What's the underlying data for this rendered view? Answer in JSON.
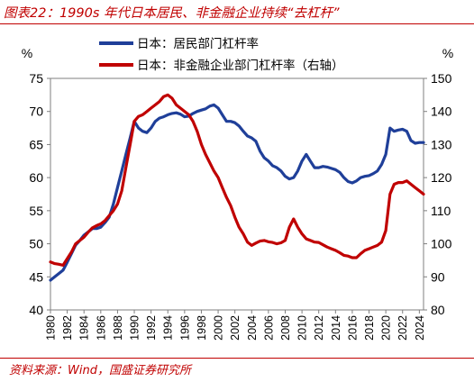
{
  "header": {
    "title": "图表22：1990s 年代日本居民、非金融企业持续“去杠杆”"
  },
  "footer": {
    "source": "资料来源：Wind，国盛证券研究所"
  },
  "colors": {
    "accent": "#c00000",
    "series_blue": "#1f3f99",
    "series_red": "#c00000"
  },
  "chart_data": {
    "type": "line",
    "left_unit": "%",
    "right_unit": "%",
    "ylim_left": [
      40,
      75
    ],
    "ylim_right": [
      80,
      150
    ],
    "yticks_left": [
      40,
      45,
      50,
      55,
      60,
      65,
      70,
      75
    ],
    "yticks_right": [
      80,
      90,
      100,
      110,
      120,
      130,
      140,
      150
    ],
    "xlim": [
      1980,
      2024.5
    ],
    "xticks": [
      "1980",
      "1982",
      "1984",
      "1986",
      "1988",
      "1990",
      "1992",
      "1994",
      "1996",
      "1998",
      "2000",
      "2002",
      "2004",
      "2006",
      "2008",
      "2010",
      "2012",
      "2014",
      "2016",
      "2018",
      "2020",
      "2022",
      "2024"
    ],
    "legend_placement": "top-center",
    "series": [
      {
        "name": "日本：居民部门杠杆率",
        "axis": "left",
        "color": "#1f3f99",
        "x": [
          1980,
          1980.5,
          1981,
          1981.5,
          1982,
          1982.5,
          1983,
          1983.5,
          1984,
          1984.5,
          1985,
          1985.5,
          1986,
          1986.5,
          1987,
          1987.5,
          1988,
          1988.5,
          1989,
          1989.5,
          1990,
          1990.5,
          1991,
          1991.5,
          1992,
          1992.5,
          1993,
          1993.5,
          1994,
          1994.5,
          1995,
          1995.5,
          1996,
          1996.5,
          1997,
          1997.5,
          1998,
          1998.5,
          1999,
          1999.5,
          2000,
          2000.5,
          2001,
          2001.5,
          2002,
          2002.5,
          2003,
          2003.5,
          2004,
          2004.5,
          2005,
          2005.5,
          2006,
          2006.5,
          2007,
          2007.5,
          2008,
          2008.5,
          2009,
          2009.5,
          2010,
          2010.5,
          2011,
          2011.5,
          2012,
          2012.5,
          2013,
          2013.5,
          2014,
          2014.5,
          2015,
          2015.5,
          2016,
          2016.5,
          2017,
          2017.5,
          2018,
          2018.5,
          2019,
          2019.5,
          2020,
          2020.5,
          2021,
          2021.5,
          2022,
          2022.5,
          2023,
          2023.5,
          2024,
          2024.5
        ],
        "values": [
          44.5,
          45.0,
          45.5,
          46.0,
          47.2,
          48.5,
          49.8,
          50.5,
          51.3,
          51.8,
          52.3,
          52.3,
          52.5,
          53.2,
          54.0,
          56.0,
          58.5,
          61.0,
          63.5,
          66.0,
          68.5,
          67.5,
          67.0,
          66.8,
          67.5,
          68.5,
          69.0,
          69.2,
          69.5,
          69.7,
          69.8,
          69.6,
          69.2,
          69.3,
          69.7,
          70.0,
          70.2,
          70.4,
          70.8,
          71.0,
          70.5,
          69.5,
          68.5,
          68.5,
          68.3,
          67.8,
          67.0,
          66.3,
          66.0,
          65.5,
          64.0,
          63.0,
          62.5,
          61.8,
          61.5,
          61.0,
          60.2,
          59.8,
          60.0,
          61.0,
          62.5,
          63.5,
          62.5,
          61.5,
          61.5,
          61.7,
          61.6,
          61.4,
          61.2,
          60.8,
          60.0,
          59.4,
          59.2,
          59.5,
          60.0,
          60.2,
          60.3,
          60.6,
          61.0,
          62.0,
          63.5,
          67.5,
          67.0,
          67.2,
          67.3,
          67.0,
          65.6,
          65.2,
          65.3,
          65.3
        ]
      },
      {
        "name": "日本：非金融企业部门杠杆率（右轴）",
        "axis": "right",
        "color": "#c00000",
        "x": [
          1980,
          1980.5,
          1981,
          1981.5,
          1982,
          1982.5,
          1983,
          1983.5,
          1984,
          1984.5,
          1985,
          1985.5,
          1986,
          1986.5,
          1987,
          1987.5,
          1988,
          1988.5,
          1989,
          1989.5,
          1990,
          1990.5,
          1991,
          1991.5,
          1992,
          1992.5,
          1993,
          1993.5,
          1994,
          1994.5,
          1995,
          1995.5,
          1996,
          1996.5,
          1997,
          1997.5,
          1998,
          1998.5,
          1999,
          1999.5,
          2000,
          2000.5,
          2001,
          2001.5,
          2002,
          2002.5,
          2003,
          2003.5,
          2004,
          2004.5,
          2005,
          2005.5,
          2006,
          2006.5,
          2007,
          2007.5,
          2008,
          2008.5,
          2009,
          2009.5,
          2010,
          2010.5,
          2011,
          2011.5,
          2012,
          2012.5,
          2013,
          2013.5,
          2014,
          2014.5,
          2015,
          2015.5,
          2016,
          2016.5,
          2017,
          2017.5,
          2018,
          2018.5,
          2019,
          2019.5,
          2020,
          2020.5,
          2021,
          2021.5,
          2022,
          2022.5,
          2023,
          2023.5,
          2024,
          2024.5
        ],
        "values": [
          94.5,
          94.0,
          93.8,
          93.5,
          95.5,
          97.5,
          100.0,
          101.0,
          102.0,
          103.5,
          104.8,
          105.5,
          106.0,
          107.0,
          108.5,
          110.0,
          112.0,
          116.0,
          123.0,
          130.0,
          137.0,
          138.5,
          139.0,
          140.0,
          141.0,
          142.0,
          143.0,
          144.5,
          145.0,
          144.0,
          142.0,
          141.0,
          140.0,
          139.0,
          137.0,
          134.0,
          130.0,
          127.0,
          124.5,
          122.0,
          120.0,
          117.0,
          114.0,
          111.5,
          108.0,
          105.0,
          103.0,
          100.5,
          99.5,
          100.2,
          100.8,
          101.0,
          100.6,
          100.4,
          100.0,
          100.3,
          101.0,
          105.0,
          107.5,
          105.0,
          103.0,
          101.5,
          101.0,
          100.5,
          100.4,
          99.7,
          99.0,
          98.5,
          98.0,
          97.3,
          96.5,
          96.3,
          95.8,
          95.8,
          97.0,
          98.0,
          98.5,
          99.0,
          99.5,
          100.5,
          104.0,
          115.0,
          118.0,
          118.5,
          118.5,
          119.0,
          118.0,
          117.0,
          116.0,
          115.0
        ]
      }
    ]
  }
}
